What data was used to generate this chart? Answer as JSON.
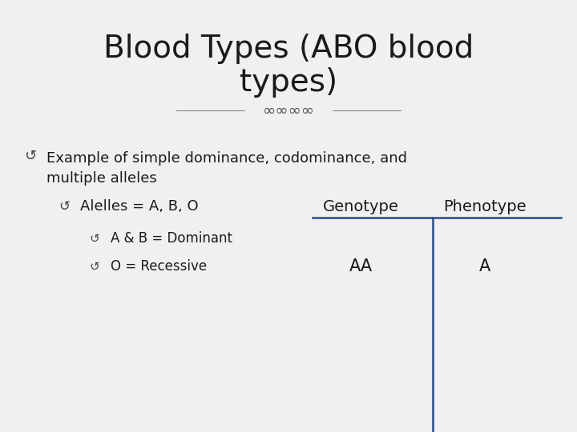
{
  "title_line1": "Blood Types (ABO blood",
  "title_line2": "types)",
  "background_color": "#f0f0f2",
  "title_color": "#1a1a1a",
  "text_color": "#1a1a1a",
  "bullet_color": "#333333",
  "table_line_color": "#2a4a8a",
  "title_fontsize": 28,
  "body_fontsize": 13,
  "header_fontsize": 14,
  "table_data_fontsize": 15,
  "text1": "Example of simple dominance, codominance, and\nmultiple alleles",
  "text2": "Alelles = A, B, O",
  "text3": "A & B = Dominant",
  "text4": "O = Recessive",
  "genotype_val": "AA",
  "phenotype_val": "A",
  "ornament_char": "∞∞∞∞"
}
